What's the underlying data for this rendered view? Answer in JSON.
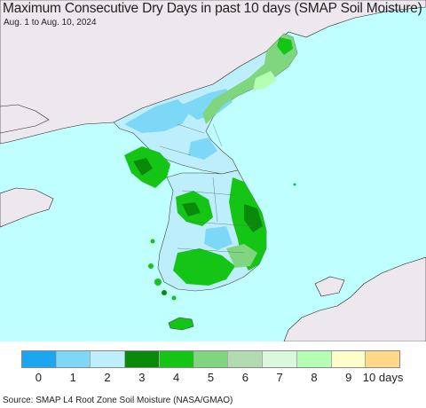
{
  "header": {
    "title": "Maximum Consecutive Dry Days in past 10 days (SMAP Soil Moisture)",
    "subtitle": "Aug. 1 to Aug. 10, 2024"
  },
  "colors": {
    "ocean": "#bfffff",
    "foreign_land": "#ede8ed",
    "legend": [
      "#1ca5f0",
      "#7dd8f8",
      "#bdeefb",
      "#0a8a0a",
      "#15c515",
      "#7fd67f",
      "#b2dbb2",
      "#dcf8dc",
      "#b5ffb5",
      "#ffffcc",
      "#ffd888"
    ]
  },
  "legend": {
    "labels": [
      "0",
      "1",
      "2",
      "3",
      "4",
      "5",
      "6",
      "7",
      "8",
      "9",
      "10 days"
    ]
  },
  "footer": {
    "source": "Source: SMAP L4 Root Zone Soil Moisture (NASA/GMAO)"
  }
}
